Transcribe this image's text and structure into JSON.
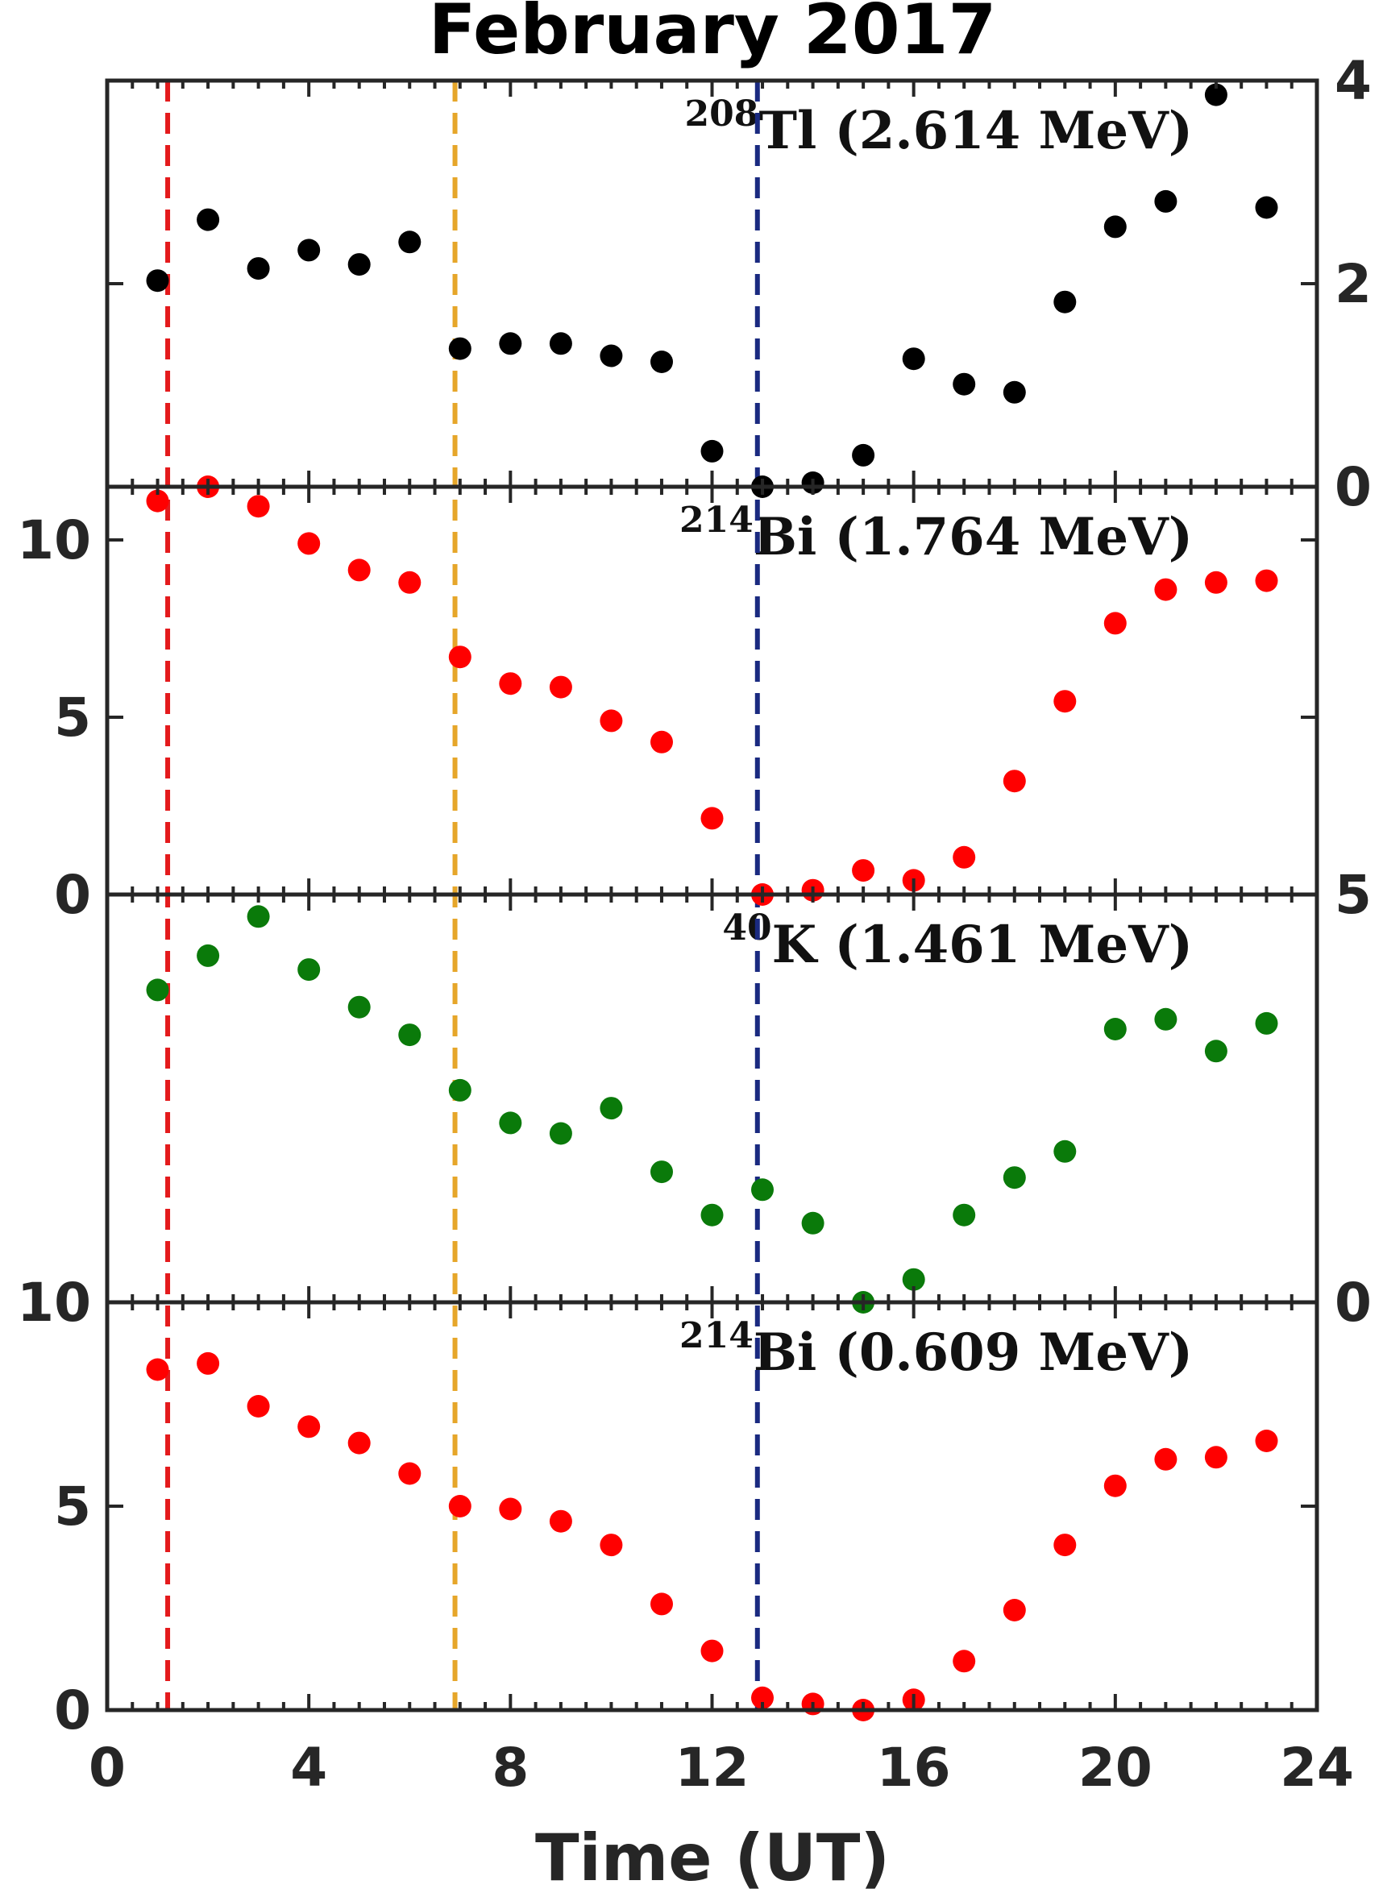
{
  "chart_data": {
    "type": "scatter",
    "title": "February 2017",
    "xlabel": "Time (UT)",
    "xlim": [
      0,
      24
    ],
    "x_ticks": [
      "0",
      "4",
      "8",
      "12",
      "16",
      "20",
      "24"
    ],
    "vlines": [
      {
        "x": 1.2,
        "color": "#e41a1c"
      },
      {
        "x": 6.9,
        "color": "#e6a62a"
      },
      {
        "x": 12.9,
        "color": "#1a2a80"
      }
    ],
    "panels": [
      {
        "label_sup": "208",
        "label_main": "Tl (2.614 MeV)",
        "color": "#000000",
        "axis_side": "right",
        "ylim": [
          0,
          4
        ],
        "y_ticks": [
          {
            "value": 0,
            "label": "0"
          },
          {
            "value": 2,
            "label": "2"
          },
          {
            "value": 4,
            "label": "4"
          }
        ],
        "x": [
          1,
          2,
          3,
          4,
          5,
          6,
          7,
          8,
          9,
          10,
          11,
          12,
          13,
          14,
          15,
          16,
          17,
          18,
          19,
          20,
          21,
          22,
          23
        ],
        "y": [
          2.03,
          2.63,
          2.15,
          2.33,
          2.19,
          2.41,
          1.36,
          1.41,
          1.41,
          1.29,
          1.23,
          0.35,
          0.0,
          0.04,
          0.31,
          1.26,
          1.01,
          0.93,
          1.82,
          2.56,
          2.81,
          3.86,
          2.75
        ]
      },
      {
        "label_sup": "214",
        "label_main": "Bi (1.764 MeV)",
        "color": "#ff0000",
        "axis_side": "left",
        "ylim": [
          0,
          11.5
        ],
        "y_ticks": [
          {
            "value": 0,
            "label": "0"
          },
          {
            "value": 5,
            "label": "5"
          },
          {
            "value": 10,
            "label": "10"
          }
        ],
        "x": [
          1,
          2,
          3,
          4,
          5,
          6,
          7,
          8,
          9,
          10,
          11,
          12,
          13,
          14,
          15,
          16,
          17,
          18,
          19,
          20,
          21,
          22,
          23
        ],
        "y": [
          11.1,
          11.5,
          10.95,
          9.9,
          9.15,
          8.8,
          6.7,
          5.95,
          5.85,
          4.9,
          4.3,
          2.15,
          0.0,
          0.12,
          0.68,
          0.4,
          1.05,
          3.2,
          5.45,
          7.65,
          8.6,
          8.8,
          8.85
        ]
      },
      {
        "label_sup": "40",
        "label_main": "K (1.461 MeV)",
        "color": "#0a7a0a",
        "axis_side": "right",
        "ylim": [
          0,
          5
        ],
        "y_ticks": [
          {
            "value": 0,
            "label": "0"
          },
          {
            "value": 5,
            "label": "5"
          }
        ],
        "x": [
          1,
          2,
          3,
          4,
          5,
          6,
          7,
          8,
          9,
          10,
          11,
          12,
          13,
          14,
          15,
          16,
          17,
          18,
          19,
          20,
          21,
          22,
          23
        ],
        "y": [
          3.83,
          4.25,
          4.73,
          4.08,
          3.62,
          3.28,
          2.6,
          2.2,
          2.07,
          2.38,
          1.6,
          1.07,
          1.38,
          0.97,
          0.0,
          0.28,
          1.07,
          1.53,
          1.85,
          3.35,
          3.47,
          3.08,
          3.42
        ]
      },
      {
        "label_sup": "214",
        "label_main": "Bi (0.609 MeV)",
        "color": "#ff0000",
        "axis_side": "left",
        "ylim": [
          0,
          10
        ],
        "y_ticks": [
          {
            "value": 0,
            "label": "0"
          },
          {
            "value": 5,
            "label": "5"
          },
          {
            "value": 10,
            "label": "10"
          }
        ],
        "x": [
          1,
          2,
          3,
          4,
          5,
          6,
          7,
          8,
          9,
          10,
          11,
          12,
          13,
          14,
          15,
          16,
          17,
          18,
          19,
          20,
          21,
          22,
          23
        ],
        "y": [
          8.35,
          8.5,
          7.45,
          6.95,
          6.55,
          5.8,
          5.0,
          4.93,
          4.63,
          4.05,
          2.6,
          1.45,
          0.3,
          0.15,
          0.0,
          0.25,
          1.2,
          2.45,
          4.05,
          5.5,
          6.15,
          6.2,
          6.6
        ]
      }
    ]
  }
}
